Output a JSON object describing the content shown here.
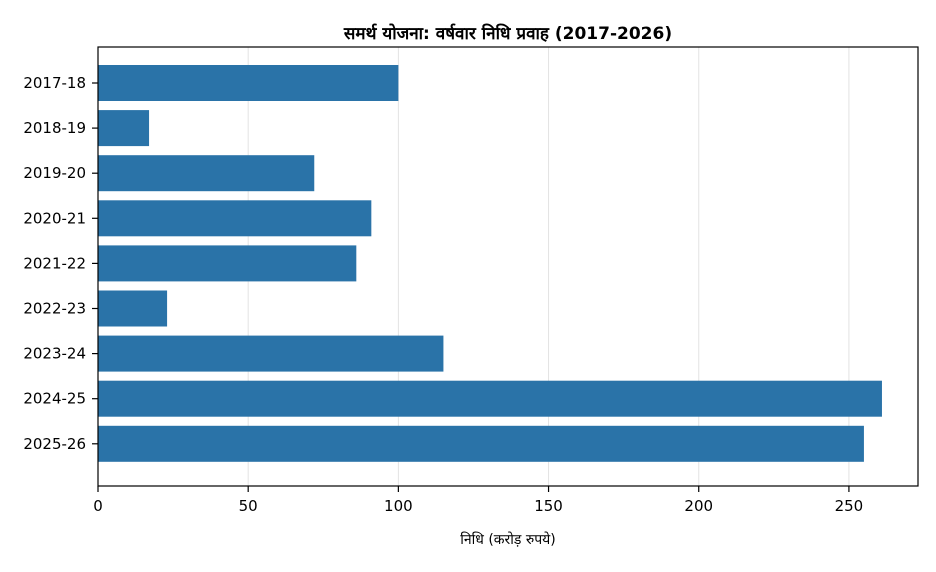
{
  "chart_data": {
    "type": "bar",
    "orientation": "horizontal",
    "title": "समर्थ योजना: वर्षवार निधि प्रवाह (2017-2026)",
    "xlabel": "निधि (करोड़ रुपये)",
    "ylabel": "",
    "categories": [
      "2017-18",
      "2018-19",
      "2019-20",
      "2020-21",
      "2021-22",
      "2022-23",
      "2023-24",
      "2024-25",
      "2025-26"
    ],
    "values": [
      100,
      17,
      72,
      91,
      86,
      23,
      115,
      261,
      255
    ],
    "xlim": [
      0,
      273
    ],
    "xticks": [
      0,
      50,
      100,
      150,
      200,
      250
    ],
    "grid": "vertical",
    "bar_color": "#2a73a8",
    "grid_color": "#e3e3e3"
  }
}
